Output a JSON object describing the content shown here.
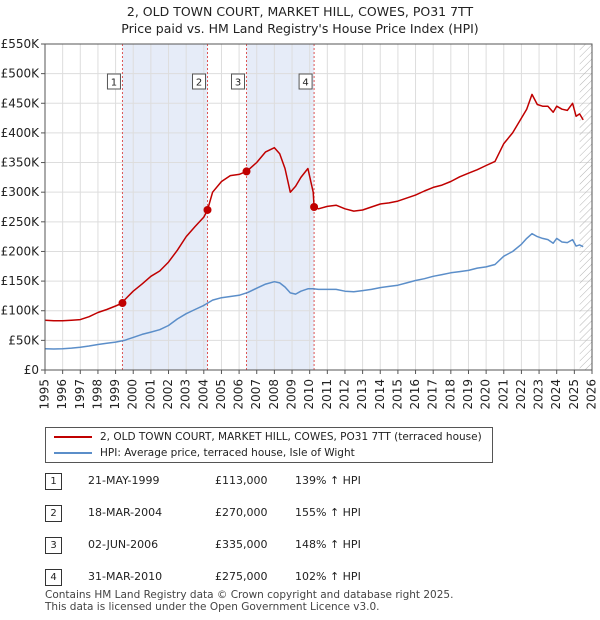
{
  "title": {
    "line1": "2, OLD TOWN COURT, MARKET HILL, COWES, PO31 7TT",
    "line2": "Price paid vs. HM Land Registry's House Price Index (HPI)"
  },
  "colors": {
    "property": "#c00000",
    "hpi": "#5b8ec9",
    "shade": "#e6ecf8",
    "marker_line": "#dd5555",
    "grid": "#dddddd"
  },
  "legend": {
    "property_label": "2, OLD TOWN COURT, MARKET HILL, COWES, PO31 7TT (terraced house)",
    "hpi_label": "HPI: Average price, terraced house, Isle of Wight"
  },
  "sales": [
    {
      "num": "1",
      "date": "21-MAY-1999",
      "price": "£113,000",
      "hpi_diff": "139% ↑ HPI"
    },
    {
      "num": "2",
      "date": "18-MAR-2004",
      "price": "£270,000",
      "hpi_diff": "155% ↑ HPI"
    },
    {
      "num": "3",
      "date": "02-JUN-2006",
      "price": "£335,000",
      "hpi_diff": "148% ↑ HPI"
    },
    {
      "num": "4",
      "date": "31-MAR-2010",
      "price": "£275,000",
      "hpi_diff": "102% ↑ HPI"
    }
  ],
  "footer": {
    "line1": "Contains HM Land Registry data © Crown copyright and database right 2025.",
    "line2": "This data is licensed under the Open Government Licence v3.0."
  },
  "chart_data": {
    "type": "line",
    "xlim": [
      1995,
      2026
    ],
    "ylim": [
      0,
      550000
    ],
    "y_ticks": [
      0,
      50000,
      100000,
      150000,
      200000,
      250000,
      300000,
      350000,
      400000,
      450000,
      500000,
      550000
    ],
    "y_tick_labels": [
      "£0",
      "£50K",
      "£100K",
      "£150K",
      "£200K",
      "£250K",
      "£300K",
      "£350K",
      "£400K",
      "£450K",
      "£500K",
      "£550K"
    ],
    "x_ticks": [
      1995,
      1996,
      1997,
      1998,
      1999,
      2000,
      2001,
      2002,
      2003,
      2004,
      2005,
      2006,
      2007,
      2008,
      2009,
      2010,
      2011,
      2012,
      2013,
      2014,
      2015,
      2016,
      2017,
      2018,
      2019,
      2020,
      2021,
      2022,
      2023,
      2024,
      2025,
      2026
    ],
    "shaded_ranges": [
      [
        1999.39,
        2004.21
      ],
      [
        2006.42,
        2010.25
      ]
    ],
    "hatch_from": 2025.3,
    "transactions": [
      {
        "label": "1",
        "x": 1999.39,
        "price": 113000
      },
      {
        "label": "2",
        "x": 2004.21,
        "price": 270000
      },
      {
        "label": "3",
        "x": 2006.42,
        "price": 335000
      },
      {
        "label": "4",
        "x": 2010.25,
        "price": 275000
      }
    ],
    "series": [
      {
        "name": "2, OLD TOWN COURT, MARKET HILL, COWES, PO31 7TT (terraced house)",
        "x": [
          1995,
          1995.5,
          1996,
          1996.5,
          1997,
          1997.5,
          1998,
          1998.5,
          1999,
          1999.39,
          1999.5,
          2000,
          2000.5,
          2001,
          2001.5,
          2002,
          2002.5,
          2003,
          2003.5,
          2004,
          2004.21,
          2004.5,
          2005,
          2005.5,
          2006,
          2006.42,
          2006.5,
          2007,
          2007.5,
          2008,
          2008.3,
          2008.6,
          2008.9,
          2009.2,
          2009.5,
          2009.9,
          2010.2,
          2010.25,
          2010.5,
          2011,
          2011.5,
          2012,
          2012.5,
          2013,
          2013.5,
          2014,
          2014.5,
          2015,
          2015.5,
          2016,
          2016.5,
          2017,
          2017.5,
          2018,
          2018.5,
          2019,
          2019.5,
          2020,
          2020.5,
          2021,
          2021.5,
          2022,
          2022.3,
          2022.6,
          2022.9,
          2023.2,
          2023.5,
          2023.8,
          2024,
          2024.3,
          2024.6,
          2024.9,
          2025.1,
          2025.3,
          2025.5
        ],
        "values": [
          84000,
          83000,
          83000,
          84000,
          85000,
          90000,
          97000,
          102000,
          108000,
          113000,
          118000,
          133000,
          145000,
          158000,
          167000,
          182000,
          202000,
          225000,
          242000,
          258000,
          270000,
          300000,
          318000,
          328000,
          330000,
          335000,
          337000,
          350000,
          368000,
          375000,
          365000,
          340000,
          300000,
          310000,
          325000,
          340000,
          300000,
          275000,
          272000,
          276000,
          278000,
          272000,
          268000,
          270000,
          275000,
          280000,
          282000,
          285000,
          290000,
          295000,
          302000,
          308000,
          312000,
          318000,
          326000,
          332000,
          338000,
          345000,
          352000,
          382000,
          400000,
          425000,
          440000,
          465000,
          448000,
          445000,
          445000,
          435000,
          445000,
          440000,
          438000,
          450000,
          428000,
          432000,
          422000
        ]
      },
      {
        "name": "HPI: Average price, terraced house, Isle of Wight",
        "x": [
          1995,
          1995.5,
          1996,
          1996.5,
          1997,
          1997.5,
          1998,
          1998.5,
          1999,
          1999.5,
          2000,
          2000.5,
          2001,
          2001.5,
          2002,
          2002.5,
          2003,
          2003.5,
          2004,
          2004.5,
          2005,
          2005.5,
          2006,
          2006.5,
          2007,
          2007.5,
          2008,
          2008.3,
          2008.6,
          2008.9,
          2009.2,
          2009.5,
          2009.9,
          2010.2,
          2010.5,
          2011,
          2011.5,
          2012,
          2012.5,
          2013,
          2013.5,
          2014,
          2014.5,
          2015,
          2015.5,
          2016,
          2016.5,
          2017,
          2017.5,
          2018,
          2018.5,
          2019,
          2019.5,
          2020,
          2020.5,
          2021,
          2021.5,
          2022,
          2022.3,
          2022.6,
          2022.9,
          2023.2,
          2023.5,
          2023.8,
          2024,
          2024.3,
          2024.6,
          2024.9,
          2025.1,
          2025.3,
          2025.5
        ],
        "values": [
          36000,
          35500,
          36000,
          37000,
          38500,
          40500,
          43000,
          45000,
          47000,
          50000,
          55000,
          60000,
          64000,
          68000,
          75000,
          86000,
          95000,
          102000,
          109000,
          118000,
          122000,
          124000,
          126000,
          131000,
          138000,
          145000,
          149000,
          147000,
          140000,
          130000,
          128000,
          133000,
          137000,
          137000,
          136000,
          136000,
          136000,
          133000,
          132000,
          134000,
          136000,
          139000,
          141000,
          143000,
          147000,
          151000,
          154000,
          158000,
          161000,
          164000,
          166000,
          168000,
          172000,
          174000,
          178000,
          192000,
          200000,
          212000,
          222000,
          230000,
          225000,
          222000,
          220000,
          214000,
          222000,
          216000,
          215000,
          220000,
          209000,
          211000,
          208000
        ]
      }
    ]
  }
}
